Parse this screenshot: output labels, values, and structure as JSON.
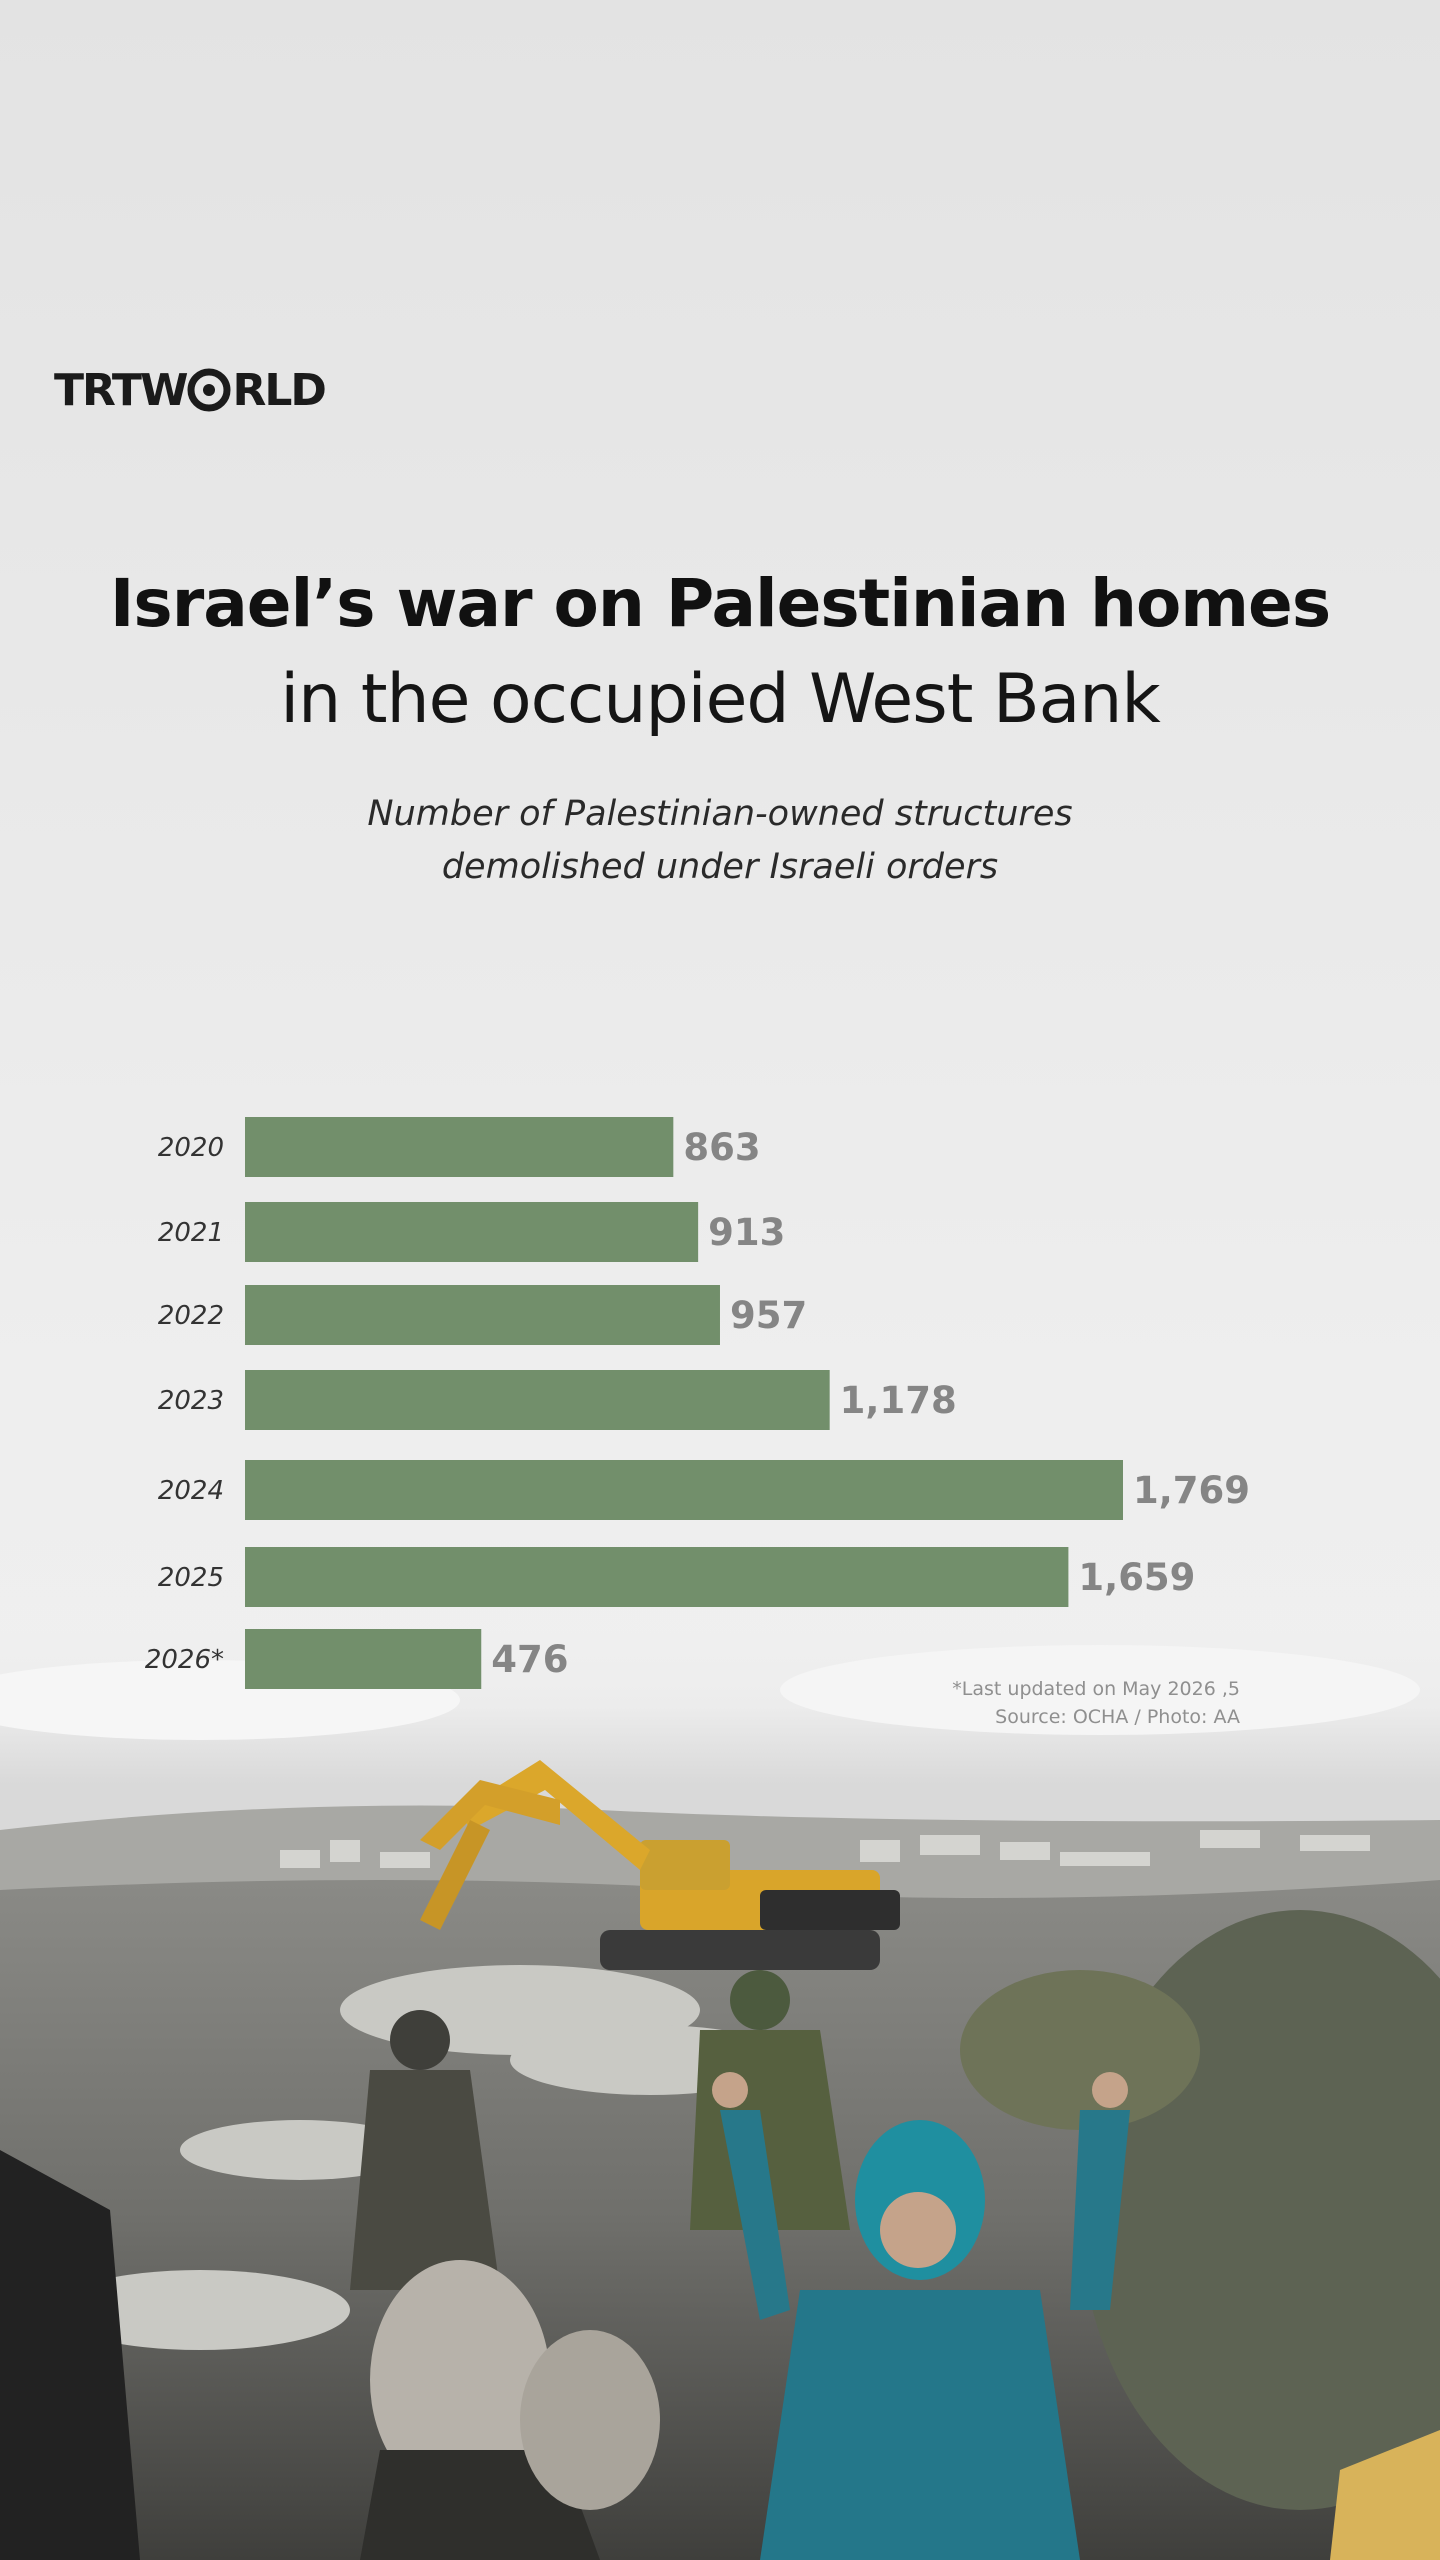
{
  "brand": {
    "logo_left": "TRT",
    "logo_right": "RLD",
    "logo_globe": "globe-o-icon"
  },
  "header": {
    "title_line1": "Israel’s war on Palestinian homes",
    "title_line2": "in the occupied West Bank",
    "subtitle_line1": "Number of Palestinian-owned structures",
    "subtitle_line2": "demolished under Israeli orders"
  },
  "chart_data": {
    "type": "bar",
    "orientation": "horizontal",
    "title": "Israel’s war on Palestinian homes in the occupied West Bank",
    "subtitle": "Number of Palestinian-owned structures demolished under Israeli orders",
    "categories": [
      "2020",
      "2021",
      "2022",
      "2023",
      "2024",
      "2025",
      "2026*"
    ],
    "values": [
      863,
      913,
      957,
      1178,
      1769,
      1659,
      476
    ],
    "value_labels": [
      "863",
      "913",
      "957",
      "1,178",
      "1,769",
      "1,659",
      "476"
    ],
    "xlabel": "",
    "ylabel": "",
    "xlim": [
      0,
      1769
    ],
    "grid": false,
    "bar_color": "#728f6b",
    "value_label_color": "#858585"
  },
  "footnote": {
    "line1": "*Last updated on May 2026 ,5",
    "line2": "Source: OCHA / Photo: AA"
  },
  "photo": {
    "subject": "demolition-scene-photo"
  }
}
